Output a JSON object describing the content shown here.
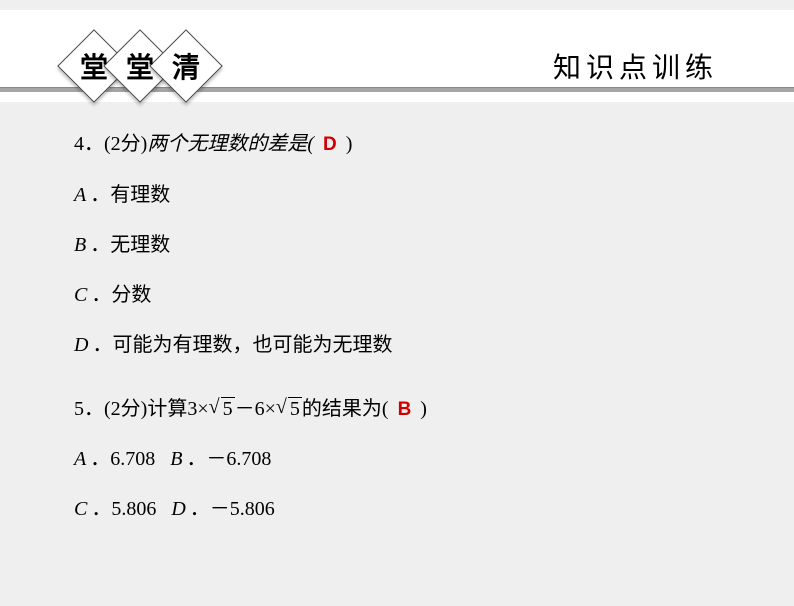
{
  "header": {
    "diamonds": [
      "堂",
      "堂",
      "清"
    ],
    "title": "知识点训练"
  },
  "q4": {
    "number": "4．",
    "points": "(2分)",
    "text": "两个无理数的差是(",
    "answer": "D",
    "close": ")",
    "options": [
      {
        "label": "A",
        "text": "．有理数"
      },
      {
        "label": "B",
        "text": "．无理数"
      },
      {
        "label": "C",
        "text": "．分数"
      },
      {
        "label": "D",
        "text": "．可能为有理数，也可能为无理数"
      }
    ]
  },
  "q5": {
    "number": "5．",
    "points": "(2分)",
    "t_a": "计算3×",
    "rad1": "5",
    "t_b": "－6×",
    "rad2": "5",
    "t_c": "的结果为(",
    "answer": "B",
    "close": ")",
    "line1": [
      {
        "label": "A",
        "text": "．6.708"
      },
      {
        "label": "B",
        "text": "．－6.708"
      }
    ],
    "line2": [
      {
        "label": "C",
        "text": "．5.806"
      },
      {
        "label": "D",
        "text": "．－5.806"
      }
    ]
  },
  "colors": {
    "answer": "#d10000",
    "bg": "#efefef",
    "divider": "#a5a5a5"
  }
}
